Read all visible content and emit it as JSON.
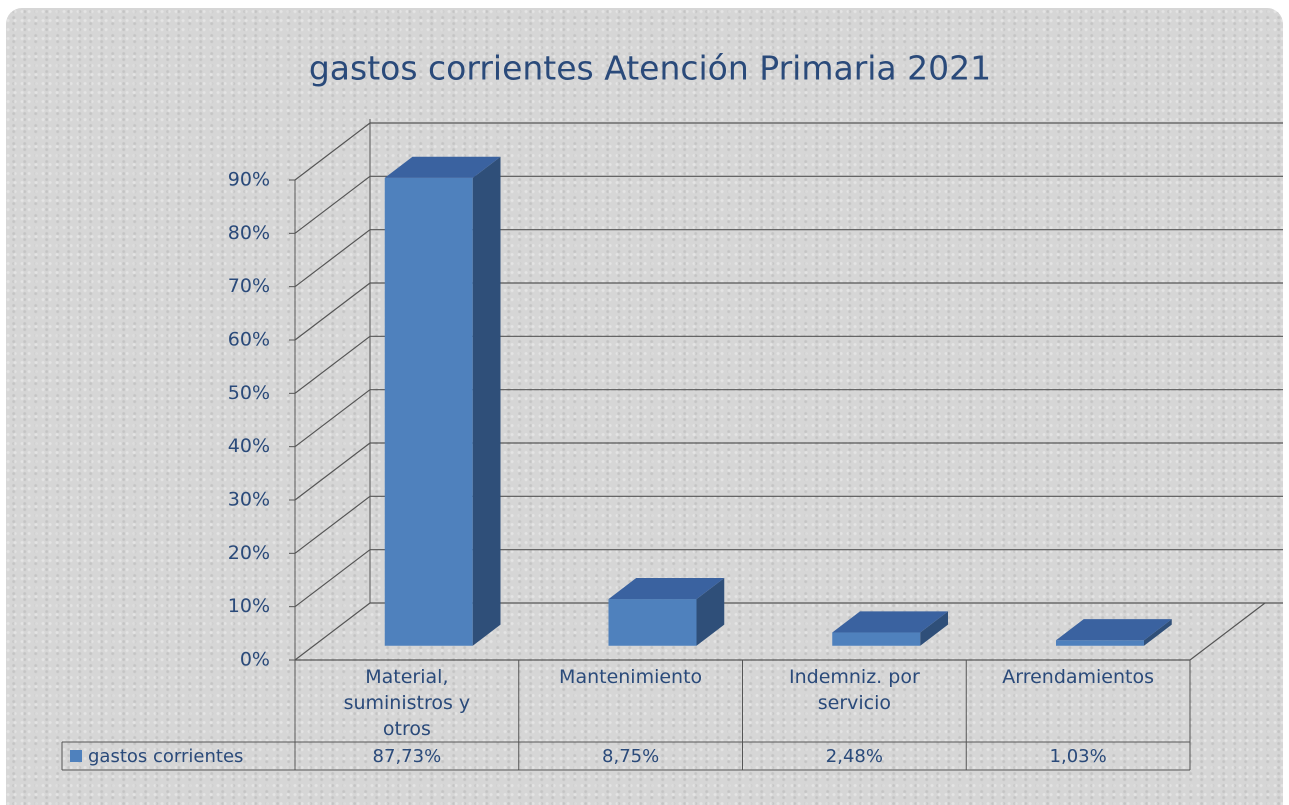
{
  "chart_data": {
    "type": "bar3d",
    "title": "gastos corrientes Atención Primaria 2021",
    "categories": [
      "Material, suministros y otros",
      "Mantenimiento",
      "Indemniz. por servicio",
      "Arrendamientos"
    ],
    "series": [
      {
        "name": "gastos corrientes",
        "color": "#4f81bd",
        "values": [
          87.73,
          8.75,
          2.48,
          1.03
        ],
        "value_labels": [
          "87,73%",
          "8,75%",
          "2,48%",
          "1,03%"
        ]
      }
    ],
    "ylim": [
      0,
      90
    ],
    "yticks": [
      {
        "value": 0,
        "label": "0%"
      },
      {
        "value": 10,
        "label": "10%"
      },
      {
        "value": 20,
        "label": "20%"
      },
      {
        "value": 30,
        "label": "30%"
      },
      {
        "value": 40,
        "label": "40%"
      },
      {
        "value": 50,
        "label": "50%"
      },
      {
        "value": 60,
        "label": "60%"
      },
      {
        "value": 70,
        "label": "70%"
      },
      {
        "value": 80,
        "label": "80%"
      },
      {
        "value": 90,
        "label": "90%"
      }
    ],
    "grid": true,
    "data_table": true
  }
}
